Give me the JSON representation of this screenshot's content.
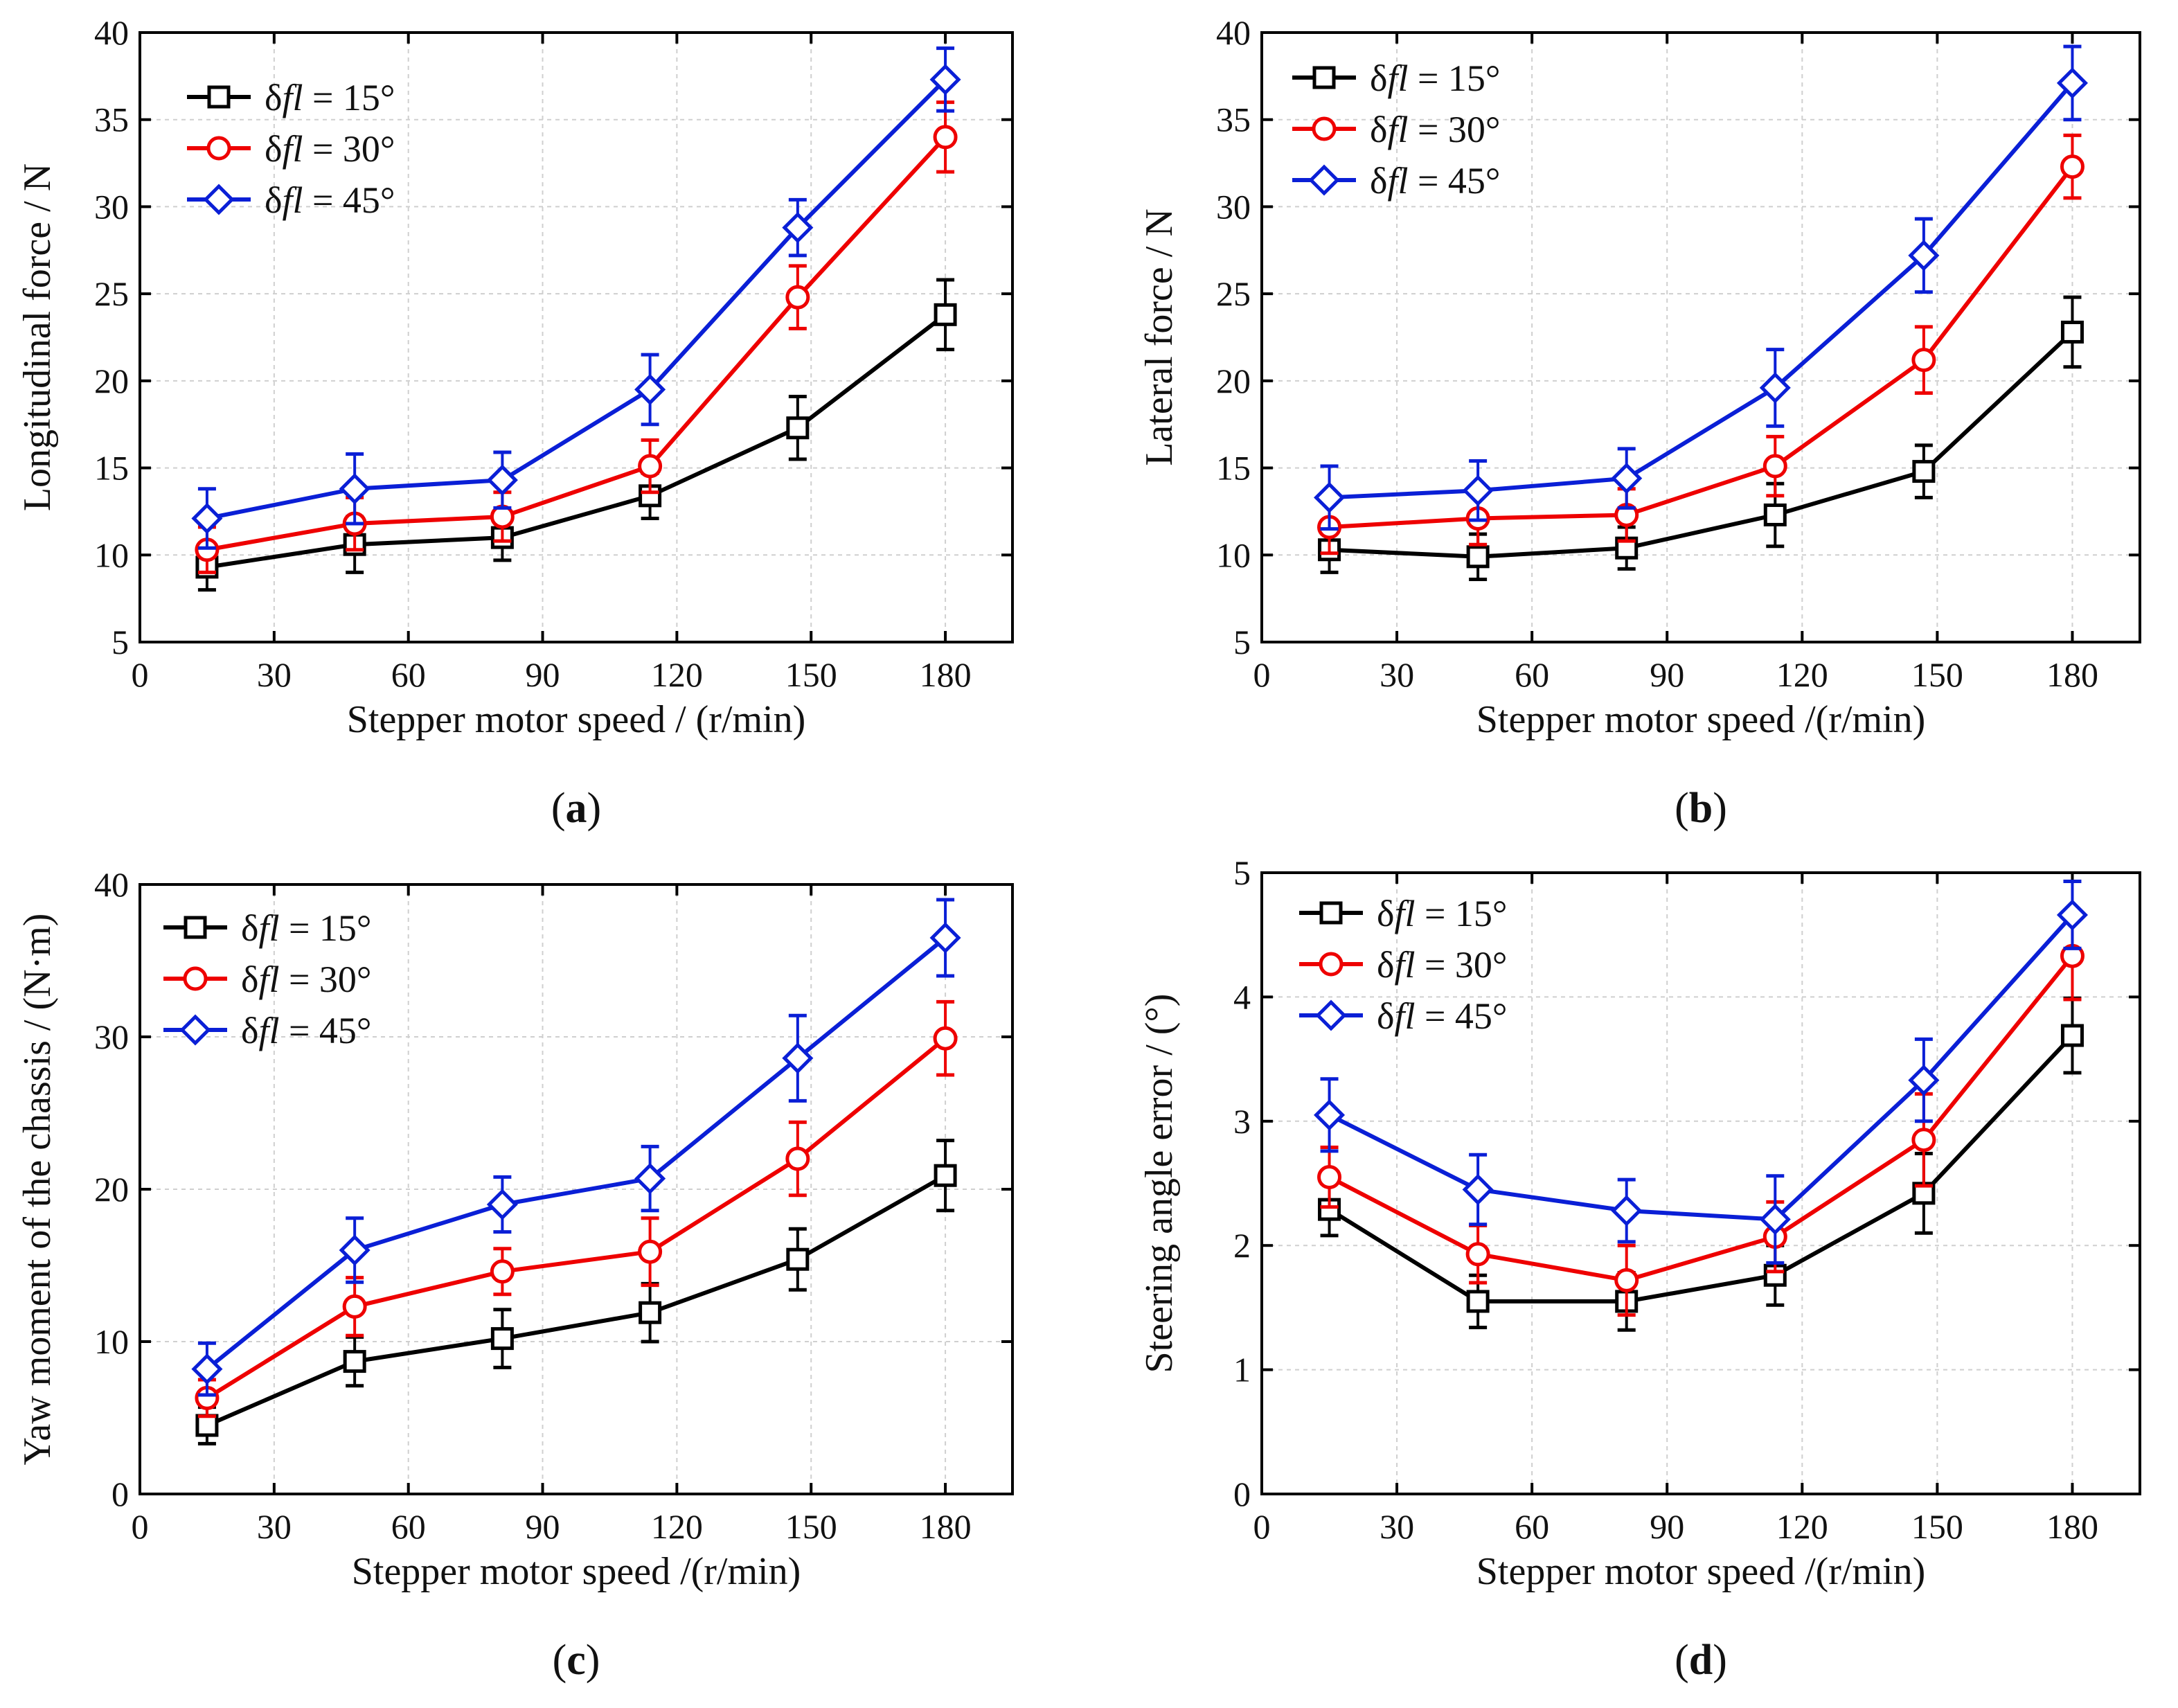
{
  "figure": {
    "panel_prefix": "(",
    "panel_suffix": ")",
    "legend_symbol": "δ",
    "legend_var": "fl"
  },
  "colors": {
    "s15": "#000000",
    "s30": "#ee0000",
    "s45": "#0a1fd6",
    "grid": "#cfcfcf",
    "axis": "#000000"
  },
  "chart_data": [
    {
      "type": "line",
      "panel": "a",
      "ylabel": "Longitudinal force / N",
      "xlabel": "Stepper motor speed / (r/min)",
      "xlim": [
        0,
        195
      ],
      "ylim": [
        5,
        40
      ],
      "xticks": [
        0,
        30,
        60,
        90,
        120,
        150,
        180
      ],
      "yticks": [
        5,
        10,
        15,
        20,
        25,
        30,
        35,
        40
      ],
      "x": [
        15,
        48,
        81,
        114,
        147,
        180
      ],
      "legend_position": "top-left",
      "series": [
        {
          "name": "δfl = 15°",
          "angle": "15°",
          "marker": "square",
          "color_key": "s15",
          "values": [
            9.3,
            10.6,
            11.0,
            13.4,
            17.3,
            23.8
          ],
          "err": [
            1.3,
            1.6,
            1.3,
            1.3,
            1.8,
            2.0
          ]
        },
        {
          "name": "δfl = 30°",
          "angle": "30°",
          "marker": "circle",
          "color_key": "s30",
          "values": [
            10.3,
            11.8,
            12.2,
            15.1,
            24.8,
            34.0
          ],
          "err": [
            1.3,
            1.5,
            1.4,
            1.5,
            1.8,
            2.0
          ]
        },
        {
          "name": "δfl = 45°",
          "angle": "45°",
          "marker": "diamond",
          "color_key": "s45",
          "values": [
            12.1,
            13.8,
            14.3,
            19.5,
            28.8,
            37.3
          ],
          "err": [
            1.7,
            2.0,
            1.6,
            2.0,
            1.6,
            1.8
          ]
        }
      ]
    },
    {
      "type": "line",
      "panel": "b",
      "ylabel": "Lateral force / N",
      "xlabel": "Stepper motor speed /(r/min)",
      "xlim": [
        0,
        195
      ],
      "ylim": [
        5,
        40
      ],
      "xticks": [
        0,
        30,
        60,
        90,
        120,
        150,
        180
      ],
      "yticks": [
        5,
        10,
        15,
        20,
        25,
        30,
        35,
        40
      ],
      "x": [
        15,
        48,
        81,
        114,
        147,
        180
      ],
      "legend_position": "top-left",
      "series": [
        {
          "name": "δfl = 15°",
          "angle": "15°",
          "marker": "square",
          "color_key": "s15",
          "values": [
            10.3,
            9.9,
            10.4,
            12.3,
            14.8,
            22.8
          ],
          "err": [
            1.3,
            1.3,
            1.2,
            1.8,
            1.5,
            2.0
          ]
        },
        {
          "name": "δfl = 30°",
          "angle": "30°",
          "marker": "circle",
          "color_key": "s30",
          "values": [
            11.6,
            12.1,
            12.3,
            15.1,
            21.2,
            32.3
          ],
          "err": [
            1.5,
            1.5,
            1.5,
            1.7,
            1.9,
            1.8
          ]
        },
        {
          "name": "δfl = 45°",
          "angle": "45°",
          "marker": "diamond",
          "color_key": "s45",
          "values": [
            13.3,
            13.7,
            14.4,
            19.6,
            27.2,
            37.1
          ],
          "err": [
            1.8,
            1.7,
            1.7,
            2.2,
            2.1,
            2.1
          ]
        }
      ]
    },
    {
      "type": "line",
      "panel": "c",
      "ylabel": "Yaw moment of the chassis / (N·m)",
      "xlabel": "Stepper motor speed /(r/min)",
      "xlim": [
        0,
        195
      ],
      "ylim": [
        0,
        40
      ],
      "xticks": [
        0,
        30,
        60,
        90,
        120,
        150,
        180
      ],
      "yticks": [
        0,
        10,
        20,
        30,
        40
      ],
      "x": [
        15,
        48,
        81,
        114,
        147,
        180
      ],
      "legend_position": "top-left",
      "series": [
        {
          "name": "δfl = 15°",
          "angle": "15°",
          "marker": "square",
          "color_key": "s15",
          "values": [
            4.5,
            8.7,
            10.2,
            11.9,
            15.4,
            20.9
          ],
          "err": [
            1.2,
            1.6,
            1.9,
            1.9,
            2.0,
            2.3
          ]
        },
        {
          "name": "δfl = 30°",
          "angle": "30°",
          "marker": "circle",
          "color_key": "s30",
          "values": [
            6.3,
            12.3,
            14.6,
            15.9,
            22.0,
            29.9
          ],
          "err": [
            1.2,
            1.9,
            1.5,
            2.2,
            2.4,
            2.4
          ]
        },
        {
          "name": "δfl = 45°",
          "angle": "45°",
          "marker": "diamond",
          "color_key": "s45",
          "values": [
            8.2,
            16.0,
            19.0,
            20.7,
            28.6,
            36.5
          ],
          "err": [
            1.7,
            2.1,
            1.8,
            2.1,
            2.8,
            2.5
          ]
        }
      ]
    },
    {
      "type": "line",
      "panel": "d",
      "ylabel": "Steering angle error / (°)",
      "xlabel": "Stepper motor speed /(r/min)",
      "xlim": [
        0,
        195
      ],
      "ylim": [
        0,
        5
      ],
      "xticks": [
        0,
        30,
        60,
        90,
        120,
        150,
        180
      ],
      "yticks": [
        0,
        1,
        2,
        3,
        4,
        5
      ],
      "x": [
        15,
        48,
        81,
        114,
        147,
        180
      ],
      "legend_position": "top-left",
      "series": [
        {
          "name": "δfl = 15°",
          "angle": "15°",
          "marker": "square",
          "color_key": "s15",
          "values": [
            2.29,
            1.55,
            1.55,
            1.76,
            2.42,
            3.69
          ],
          "err": [
            0.21,
            0.21,
            0.23,
            0.24,
            0.32,
            0.3
          ]
        },
        {
          "name": "δfl = 30°",
          "angle": "30°",
          "marker": "circle",
          "color_key": "s30",
          "values": [
            2.55,
            1.93,
            1.72,
            2.07,
            2.85,
            4.33
          ],
          "err": [
            0.24,
            0.23,
            0.28,
            0.28,
            0.37,
            0.35
          ]
        },
        {
          "name": "δfl = 45°",
          "angle": "45°",
          "marker": "diamond",
          "color_key": "s45",
          "values": [
            3.05,
            2.45,
            2.28,
            2.21,
            3.33,
            4.66
          ],
          "err": [
            0.29,
            0.28,
            0.25,
            0.35,
            0.33,
            0.27
          ]
        }
      ]
    }
  ]
}
